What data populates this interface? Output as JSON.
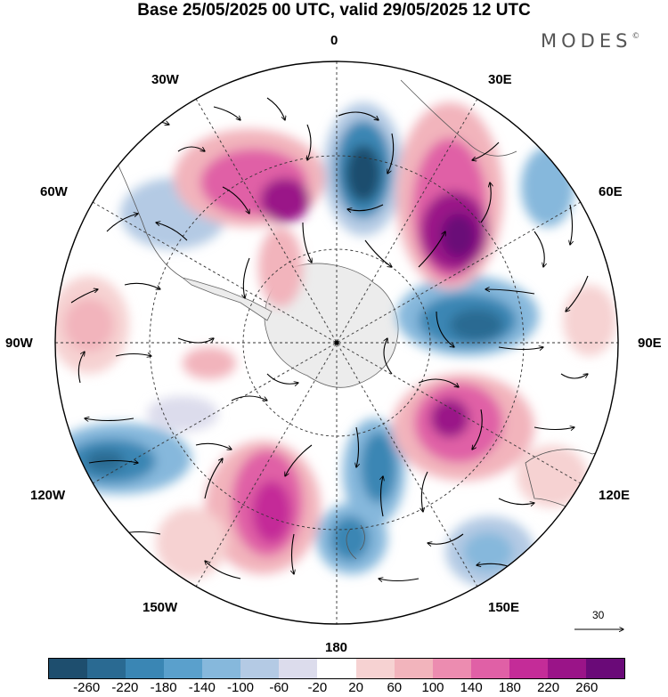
{
  "title": "Base 25/05/2025 00 UTC, valid 29/05/2025 12 UTC",
  "brand": {
    "name": "MODES",
    "mark": "©"
  },
  "longitude_labels": {
    "top": "0",
    "bottom": "180",
    "left": "90W",
    "right": "90E",
    "upper_left_1": "30W",
    "upper_left_2": "60W",
    "upper_right_1": "30E",
    "upper_right_2": "60E",
    "lower_left_1": "120W",
    "lower_left_2": "150W",
    "lower_right_1": "120E",
    "lower_right_2": "150E"
  },
  "reference_vector": {
    "label": "30"
  },
  "colorbar": {
    "colors": [
      "#1e4e6e",
      "#2a6a92",
      "#3a86b4",
      "#5aa0cc",
      "#86b8dc",
      "#b4cae4",
      "#dcdcec",
      "#ffffff",
      "#f6d2d2",
      "#f2b4bc",
      "#ec8cb0",
      "#e060a6",
      "#c42c98",
      "#9a1488",
      "#6a0a78"
    ],
    "labels": [
      "-260",
      "-220",
      "-180",
      "-140",
      "-100",
      "-60",
      "-20",
      "20",
      "60",
      "100",
      "140",
      "180",
      "220",
      "260"
    ]
  },
  "map_colors": {
    "ocean": "#ffffff",
    "land": "#ececec"
  }
}
